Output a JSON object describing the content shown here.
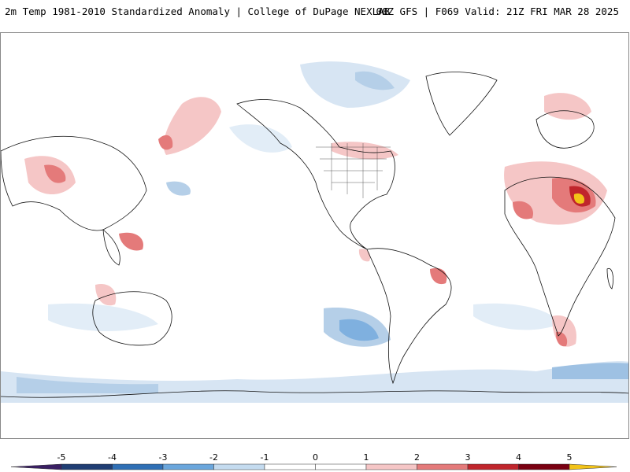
{
  "header": {
    "title": "2m Temp 1981-2010 Standardized Anomaly | College of DuPage NEXLAB",
    "run_info": "00Z GFS | F069 Valid: 21Z FRI MAR 28 2025"
  },
  "colorbar": {
    "ticks": [
      "-5",
      "-4",
      "-3",
      "-2",
      "-1",
      "0",
      "1",
      "2",
      "3",
      "4",
      "5"
    ],
    "colors": [
      "#3a1f63",
      "#1f3d73",
      "#2f6fb5",
      "#6aa6dc",
      "#c4dbef",
      "#ffffff",
      "#ffffff",
      "#f5c6c6",
      "#e47a7a",
      "#c0252c",
      "#7a0012",
      "#f2c318"
    ]
  }
}
